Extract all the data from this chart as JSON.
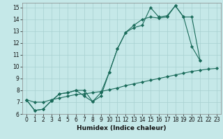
{
  "xlabel": "Humidex (Indice chaleur)",
  "bg_color": "#c5e8e8",
  "grid_color": "#a8d0d0",
  "line_color": "#1a6b5a",
  "xlim": [
    -0.5,
    23.5
  ],
  "ylim": [
    6,
    15.4
  ],
  "xticks": [
    0,
    1,
    2,
    3,
    4,
    5,
    6,
    7,
    8,
    9,
    10,
    11,
    12,
    13,
    14,
    15,
    16,
    17,
    18,
    19,
    20,
    21,
    22,
    23
  ],
  "yticks": [
    6,
    7,
    8,
    9,
    10,
    11,
    12,
    13,
    14,
    15
  ],
  "line1_x": [
    0,
    1,
    2,
    3,
    4,
    5,
    6,
    7,
    8,
    9,
    10,
    11,
    12,
    13,
    14,
    15,
    16,
    17,
    18,
    19,
    20,
    21
  ],
  "line1_y": [
    7.2,
    6.3,
    6.4,
    7.1,
    7.7,
    7.8,
    8.0,
    8.0,
    7.05,
    7.8,
    9.5,
    11.5,
    12.9,
    13.3,
    13.5,
    15.0,
    14.2,
    14.3,
    15.15,
    14.2,
    11.7,
    10.5
  ],
  "line2_x": [
    0,
    1,
    2,
    3,
    4,
    5,
    6,
    7,
    8,
    9,
    10,
    11,
    12,
    13,
    14,
    15,
    16,
    17,
    18,
    19,
    20,
    21
  ],
  "line2_y": [
    7.2,
    6.3,
    6.4,
    7.1,
    7.7,
    7.8,
    8.0,
    7.5,
    7.05,
    7.5,
    9.5,
    11.5,
    12.9,
    13.5,
    14.0,
    14.2,
    14.1,
    14.2,
    15.15,
    14.2,
    14.2,
    10.5
  ],
  "line3_x": [
    0,
    1,
    2,
    3,
    4,
    5,
    6,
    7,
    8,
    9,
    10,
    11,
    12,
    13,
    14,
    15,
    16,
    17,
    18,
    19,
    20,
    21,
    22,
    23
  ],
  "line3_y": [
    7.2,
    7.0,
    7.0,
    7.2,
    7.35,
    7.5,
    7.65,
    7.7,
    7.8,
    7.9,
    8.05,
    8.2,
    8.4,
    8.55,
    8.7,
    8.85,
    9.0,
    9.15,
    9.3,
    9.45,
    9.6,
    9.7,
    9.8,
    9.85
  ]
}
